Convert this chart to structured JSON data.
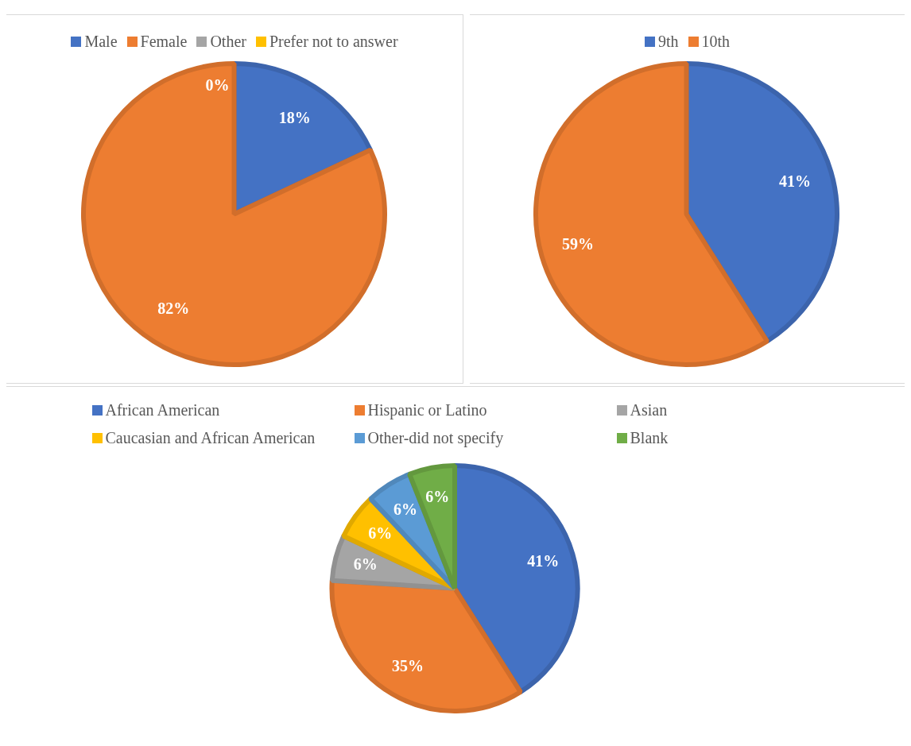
{
  "chart_data": [
    {
      "type": "pie",
      "categories": [
        "Male",
        "Female",
        "Other",
        "Prefer not to answer"
      ],
      "values": [
        18,
        82,
        0,
        0
      ],
      "colors": [
        "#4472c4",
        "#ed7d31",
        "#a5a5a5",
        "#ffc000"
      ],
      "legend": "top",
      "value_labels": [
        "18%",
        "82%",
        "0%",
        null
      ]
    },
    {
      "type": "pie",
      "categories": [
        "9th",
        "10th"
      ],
      "values": [
        41,
        59
      ],
      "colors": [
        "#4472c4",
        "#ed7d31"
      ],
      "legend": "top",
      "value_labels": [
        "41%",
        "59%"
      ]
    },
    {
      "type": "pie",
      "categories": [
        "African American",
        "Hispanic or Latino",
        "Asian",
        "Caucasian and African American",
        "Other-did not specify",
        "Blank"
      ],
      "values": [
        41,
        35,
        6,
        6,
        6,
        6
      ],
      "colors": [
        "#4472c4",
        "#ed7d31",
        "#a5a5a5",
        "#ffc000",
        "#5b9bd5",
        "#70ad47"
      ],
      "legend": "top",
      "value_labels": [
        "41%",
        "35%",
        "6%",
        "6%",
        "6%",
        "6%"
      ]
    }
  ]
}
